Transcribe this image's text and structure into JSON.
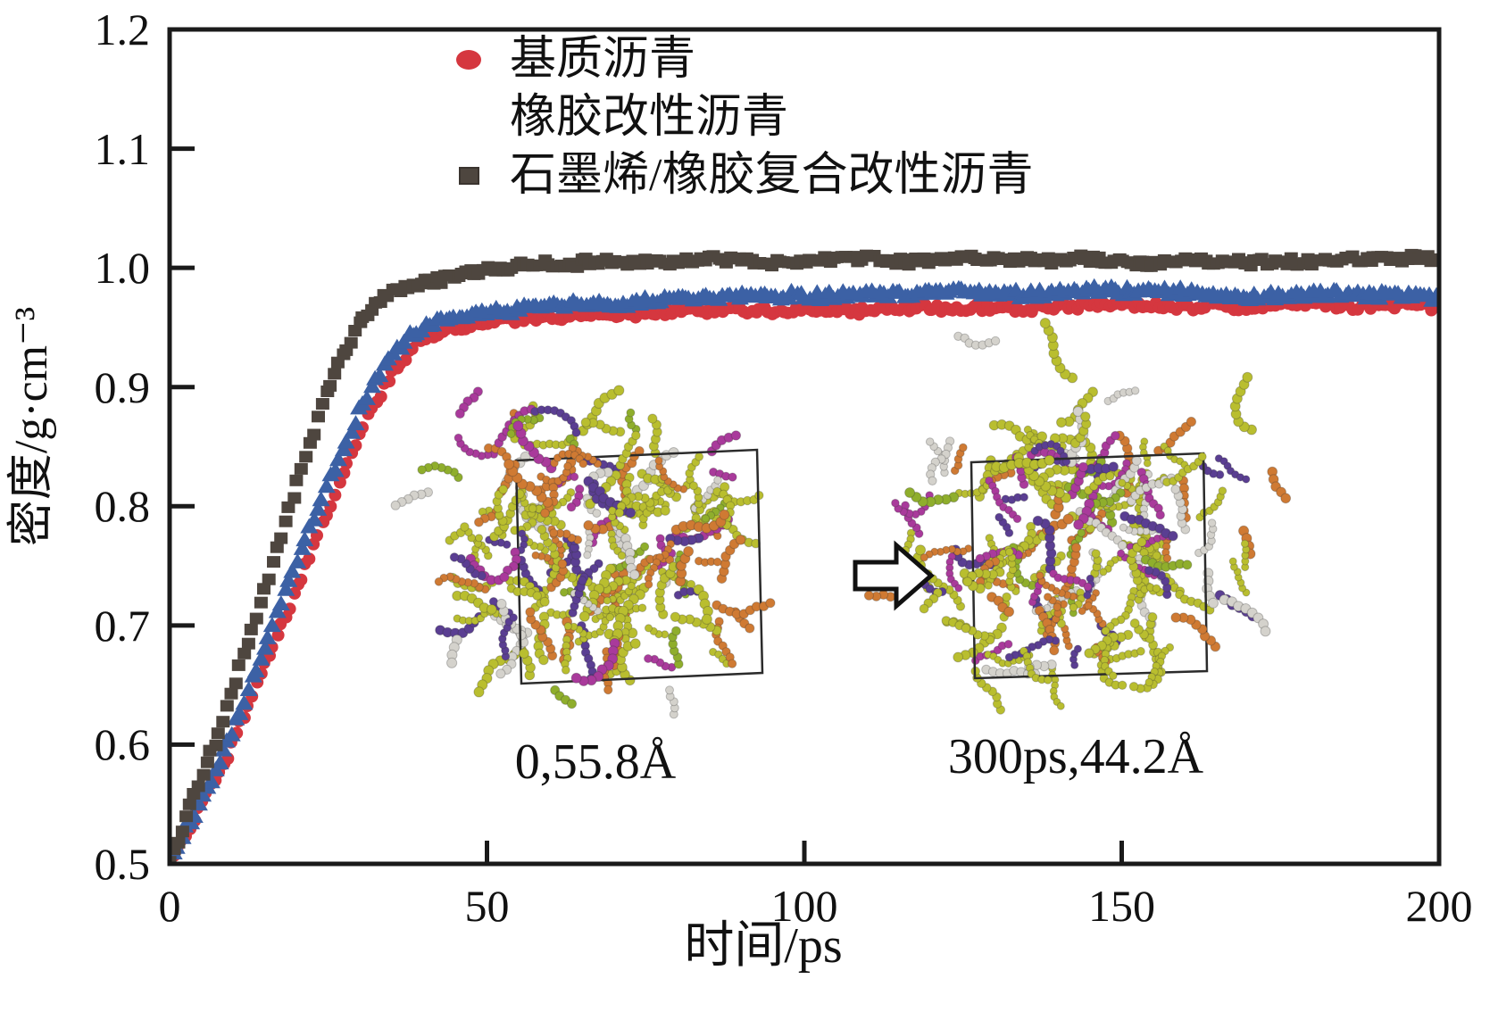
{
  "figure": {
    "background": "#ffffff",
    "axis_color": "#1a1a1a"
  },
  "chart_data": {
    "type": "scatter",
    "title": "",
    "xlabel": "时间/ps",
    "ylabel": "密度/g·cm⁻³",
    "xlim": [
      0,
      200
    ],
    "ylim": [
      0.5,
      1.2
    ],
    "x_ticks": [
      0,
      50,
      100,
      150,
      200
    ],
    "x_tick_labels": [
      "0",
      "50",
      "100",
      "150",
      "200"
    ],
    "y_ticks": [
      0.5,
      0.6,
      0.7,
      0.8,
      0.9,
      1.0,
      1.1,
      1.2
    ],
    "y_tick_labels": [
      "0.5",
      "0.6",
      "0.7",
      "0.8",
      "0.9",
      "1.0",
      "1.1",
      "1.2"
    ],
    "grid": false,
    "legend_position": "inside-top-left",
    "series": [
      {
        "name": "基质沥青",
        "marker": "circle",
        "color": "#d5373f",
        "x": [
          0,
          9,
          17,
          25,
          31,
          35,
          39,
          43,
          50,
          62,
          80,
          100,
          120,
          140,
          160,
          180,
          200
        ],
        "y": [
          0.5,
          0.59,
          0.695,
          0.8,
          0.875,
          0.915,
          0.942,
          0.952,
          0.958,
          0.963,
          0.966,
          0.968,
          0.97,
          0.971,
          0.971,
          0.97,
          0.969
        ]
      },
      {
        "name": "橡胶改性沥青",
        "marker": "triangle",
        "color": "#3c61a5",
        "x": [
          0,
          8,
          16,
          24,
          30,
          34,
          38,
          42,
          48,
          60,
          80,
          100,
          120,
          140,
          160,
          180,
          200
        ],
        "y": [
          0.5,
          0.59,
          0.7,
          0.81,
          0.885,
          0.925,
          0.95,
          0.96,
          0.967,
          0.972,
          0.976,
          0.978,
          0.98,
          0.981,
          0.981,
          0.98,
          0.98
        ]
      },
      {
        "name": "石墨烯/橡胶复合改性沥青",
        "marker": "square",
        "color": "#4e463f",
        "x": [
          0,
          7,
          14,
          20,
          25,
          30,
          34,
          40,
          50,
          65,
          90,
          120,
          150,
          175,
          200
        ],
        "y": [
          0.5,
          0.6,
          0.71,
          0.82,
          0.9,
          0.955,
          0.978,
          0.99,
          0.998,
          1.004,
          1.006,
          1.007,
          1.005,
          1.004,
          1.003
        ]
      }
    ],
    "annotations": {
      "left_model_label": "0,55.8Å",
      "right_model_label": "300ps,44.2Å"
    },
    "inset_models": {
      "molecule_colors": [
        "#b9be2f",
        "#cf7a33",
        "#d4d2cc",
        "#a93a9b",
        "#5a3e92",
        "#8fae2c"
      ],
      "box_color": "#2b2b2b",
      "arrow_color": "#111111"
    }
  }
}
